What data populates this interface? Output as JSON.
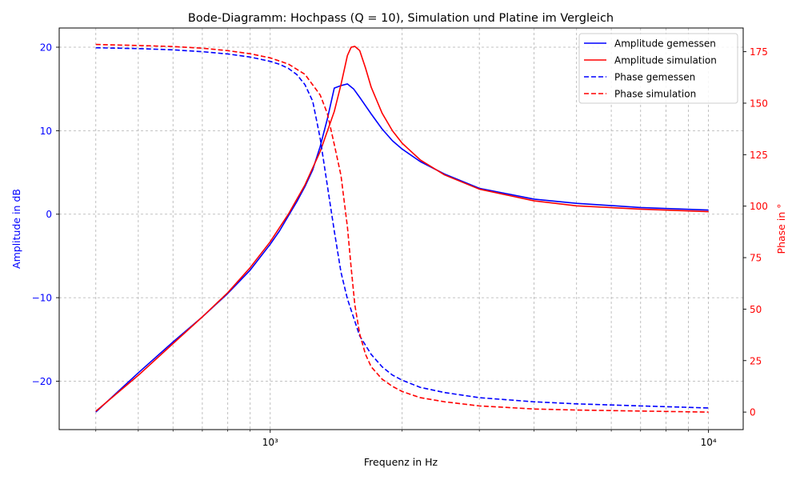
{
  "chart_data": {
    "type": "line",
    "title": "Bode-Diagramm: Hochpass (Q = 10), Simulation und Platine im Vergleich",
    "xlabel": "Frequenz in Hz",
    "ylabel_left": "Amplitude in dB",
    "ylabel_right": "Phase in °",
    "x_scale": "log",
    "xlim": [
      330,
      12000
    ],
    "ylim_left": [
      -25.8,
      22.3
    ],
    "ylim_right": [
      -8.5,
      186.5
    ],
    "x_ticks": [
      {
        "value": 1000,
        "label": "10³"
      },
      {
        "value": 10000,
        "label": "10⁴"
      }
    ],
    "y_ticks_left": [
      {
        "value": -20,
        "label": "−20"
      },
      {
        "value": -10,
        "label": "−10"
      },
      {
        "value": 0,
        "label": "0"
      },
      {
        "value": 10,
        "label": "10"
      },
      {
        "value": 20,
        "label": "20"
      }
    ],
    "y_ticks_right": [
      {
        "value": 0,
        "label": "0"
      },
      {
        "value": 25,
        "label": "25"
      },
      {
        "value": 50,
        "label": "50"
      },
      {
        "value": 75,
        "label": "75"
      },
      {
        "value": 100,
        "label": "100"
      },
      {
        "value": 125,
        "label": "125"
      },
      {
        "value": 150,
        "label": "150"
      },
      {
        "value": 175,
        "label": "175"
      }
    ],
    "grid": true,
    "legend_position": "top-right",
    "colors": {
      "measured": "#0000ff",
      "simulation": "#ff0000",
      "left_axis": "#0000ff",
      "right_axis": "#ff0000"
    },
    "series": [
      {
        "name": "Amplitude gemessen",
        "axis": "left",
        "style": "solid",
        "color": "#0000ff",
        "x": [
          400,
          500,
          600,
          700,
          800,
          900,
          1000,
          1050,
          1100,
          1150,
          1200,
          1250,
          1300,
          1350,
          1400,
          1450,
          1500,
          1550,
          1600,
          1700,
          1800,
          1900,
          2000,
          2200,
          2500,
          3000,
          4000,
          5000,
          7000,
          10000
        ],
        "y": [
          -23.7,
          -19.0,
          -15.3,
          -12.3,
          -9.5,
          -6.7,
          -3.6,
          -2.0,
          -0.2,
          1.5,
          3.3,
          5.3,
          8.1,
          11.4,
          15.1,
          15.4,
          15.6,
          15.0,
          14.0,
          12.0,
          10.2,
          8.8,
          7.8,
          6.3,
          4.8,
          3.1,
          1.8,
          1.3,
          0.8,
          0.5
        ]
      },
      {
        "name": "Amplitude simulation",
        "axis": "left",
        "style": "solid",
        "color": "#ff0000",
        "x": [
          400,
          500,
          600,
          700,
          800,
          900,
          1000,
          1100,
          1200,
          1300,
          1400,
          1450,
          1500,
          1530,
          1560,
          1600,
          1650,
          1700,
          1800,
          1900,
          2000,
          2200,
          2500,
          3000,
          4000,
          5000,
          7000,
          10000
        ],
        "y": [
          -23.6,
          -19.3,
          -15.5,
          -12.3,
          -9.4,
          -6.4,
          -3.3,
          0.0,
          3.5,
          7.5,
          12.3,
          15.5,
          19.0,
          20.0,
          20.1,
          19.6,
          17.5,
          15.2,
          12.1,
          10.0,
          8.5,
          6.5,
          4.7,
          3.0,
          1.6,
          1.0,
          0.6,
          0.3
        ]
      },
      {
        "name": "Phase gemessen",
        "axis": "right",
        "style": "dashed",
        "color": "#0000ff",
        "x": [
          400,
          500,
          600,
          700,
          800,
          900,
          1000,
          1050,
          1100,
          1150,
          1200,
          1250,
          1300,
          1350,
          1400,
          1450,
          1500,
          1600,
          1700,
          1800,
          1900,
          2000,
          2200,
          2500,
          3000,
          4000,
          5000,
          7000,
          10000
        ],
        "y": [
          176.9,
          176.5,
          175.9,
          175.0,
          173.9,
          172.4,
          170.3,
          168.9,
          166.9,
          163.9,
          159.0,
          151.0,
          133.0,
          110.0,
          88.0,
          68.0,
          55.0,
          37.0,
          28.0,
          22.0,
          18.0,
          15.5,
          12.0,
          9.5,
          7.0,
          5.0,
          4.0,
          3.0,
          2.0
        ]
      },
      {
        "name": "Phase simulation",
        "axis": "right",
        "style": "dashed",
        "color": "#ff0000",
        "x": [
          400,
          500,
          600,
          700,
          800,
          900,
          1000,
          1100,
          1200,
          1300,
          1350,
          1400,
          1450,
          1500,
          1530,
          1560,
          1600,
          1650,
          1700,
          1800,
          1900,
          2000,
          2200,
          2500,
          3000,
          4000,
          5000,
          7000,
          10000
        ],
        "y": [
          178.5,
          178.0,
          177.5,
          176.7,
          175.5,
          174.0,
          172.0,
          169.0,
          164.0,
          154.0,
          145.0,
          130.0,
          115.0,
          90.0,
          70.0,
          52.0,
          38.0,
          28.0,
          22.0,
          16.0,
          12.5,
          10.0,
          7.0,
          5.0,
          3.0,
          1.5,
          1.0,
          0.5,
          0.0
        ]
      }
    ]
  }
}
